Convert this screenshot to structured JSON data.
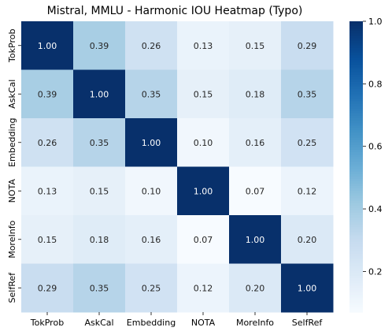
{
  "chart_data": {
    "type": "heatmap",
    "title": "Mistral, MMLU - Harmonic IOU Heatmap (Typo)",
    "xlabel": "",
    "ylabel": "",
    "x_categories": [
      "TokProb",
      "AskCal",
      "Embedding",
      "NOTA",
      "MoreInfo",
      "SelfRef"
    ],
    "y_categories": [
      "TokProb",
      "AskCal",
      "Embedding",
      "NOTA",
      "MoreInfo",
      "SelfRef"
    ],
    "values": [
      [
        1.0,
        0.39,
        0.26,
        0.13,
        0.15,
        0.29
      ],
      [
        0.39,
        1.0,
        0.35,
        0.15,
        0.18,
        0.35
      ],
      [
        0.26,
        0.35,
        1.0,
        0.1,
        0.16,
        0.25
      ],
      [
        0.13,
        0.15,
        0.1,
        1.0,
        0.07,
        0.12
      ],
      [
        0.15,
        0.18,
        0.16,
        0.07,
        1.0,
        0.2
      ],
      [
        0.29,
        0.35,
        0.25,
        0.12,
        0.2,
        1.0
      ]
    ],
    "colormap": "Blues",
    "vmin": 0.07,
    "vmax": 1.0,
    "colorbar_ticks": [
      "0.2",
      "0.4",
      "0.6",
      "0.8",
      "1.0"
    ],
    "annotation_format": "2 decimals",
    "grid": false
  }
}
